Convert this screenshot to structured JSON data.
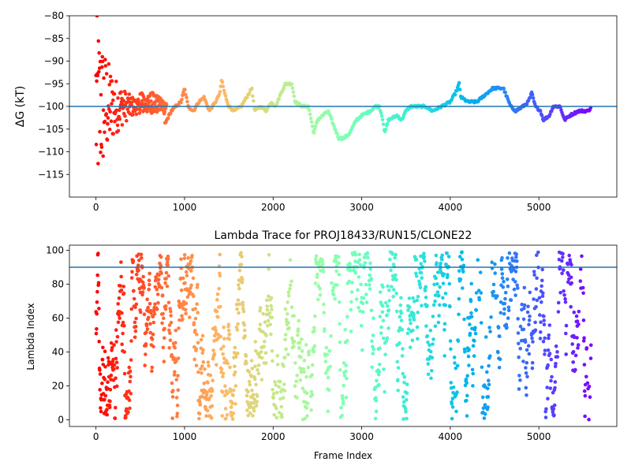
{
  "chart_data": [
    {
      "type": "scatter",
      "title": "",
      "xlabel": "",
      "ylabel": "ΔG (kT)",
      "xlim": [
        -300,
        5880
      ],
      "ylim": [
        -120,
        -80
      ],
      "x_ticks": [
        0,
        1000,
        2000,
        3000,
        4000,
        5000
      ],
      "y_ticks": [
        -115,
        -110,
        -105,
        -100,
        -95,
        -90,
        -85,
        -80
      ],
      "reference_line": {
        "y": -100,
        "color": "#1f77b4"
      },
      "colormap": "rainbow (frame index: red at 0 → violet at 5600)",
      "n_frames": 5600,
      "trace": [
        [
          0,
          -100
        ],
        [
          60,
          -99
        ],
        [
          150,
          -100
        ],
        [
          250,
          -99
        ],
        [
          350,
          -98
        ],
        [
          450,
          -98
        ],
        [
          520,
          -97
        ],
        [
          560,
          -99
        ],
        [
          620,
          -97
        ],
        [
          700,
          -98
        ],
        [
          760,
          -99
        ],
        [
          780,
          -104
        ],
        [
          800,
          -103
        ],
        [
          850,
          -101
        ],
        [
          900,
          -100
        ],
        [
          960,
          -99
        ],
        [
          1000,
          -96
        ],
        [
          1040,
          -100
        ],
        [
          1100,
          -101
        ],
        [
          1160,
          -99
        ],
        [
          1220,
          -98
        ],
        [
          1280,
          -101
        ],
        [
          1350,
          -99
        ],
        [
          1400,
          -97
        ],
        [
          1420,
          -94
        ],
        [
          1450,
          -97
        ],
        [
          1500,
          -100
        ],
        [
          1560,
          -101
        ],
        [
          1640,
          -100
        ],
        [
          1700,
          -98
        ],
        [
          1760,
          -96
        ],
        [
          1790,
          -101
        ],
        [
          1860,
          -100
        ],
        [
          1920,
          -101
        ],
        [
          1980,
          -99
        ],
        [
          2030,
          -100
        ],
        [
          2090,
          -97
        ],
        [
          2140,
          -95
        ],
        [
          2210,
          -95
        ],
        [
          2250,
          -99
        ],
        [
          2330,
          -100
        ],
        [
          2400,
          -100
        ],
        [
          2440,
          -104
        ],
        [
          2460,
          -106
        ],
        [
          2500,
          -103
        ],
        [
          2560,
          -102
        ],
        [
          2620,
          -101
        ],
        [
          2680,
          -104
        ],
        [
          2740,
          -107
        ],
        [
          2800,
          -107
        ],
        [
          2860,
          -106
        ],
        [
          2940,
          -103
        ],
        [
          3000,
          -102
        ],
        [
          3100,
          -101
        ],
        [
          3150,
          -100
        ],
        [
          3200,
          -100
        ],
        [
          3240,
          -103
        ],
        [
          3260,
          -106
        ],
        [
          3300,
          -103
        ],
        [
          3400,
          -102
        ],
        [
          3450,
          -103
        ],
        [
          3500,
          -101
        ],
        [
          3550,
          -100
        ],
        [
          3640,
          -100
        ],
        [
          3720,
          -100
        ],
        [
          3800,
          -101
        ],
        [
          3900,
          -100
        ],
        [
          4000,
          -99
        ],
        [
          4060,
          -97
        ],
        [
          4100,
          -95
        ],
        [
          4120,
          -98
        ],
        [
          4200,
          -99
        ],
        [
          4300,
          -99
        ],
        [
          4360,
          -98
        ],
        [
          4420,
          -97
        ],
        [
          4480,
          -96
        ],
        [
          4600,
          -96
        ],
        [
          4680,
          -100
        ],
        [
          4740,
          -101
        ],
        [
          4820,
          -100
        ],
        [
          4880,
          -99
        ],
        [
          4920,
          -97
        ],
        [
          4960,
          -100
        ],
        [
          5020,
          -101
        ],
        [
          5050,
          -103
        ],
        [
          5120,
          -102
        ],
        [
          5160,
          -100
        ],
        [
          5240,
          -100
        ],
        [
          5290,
          -103
        ],
        [
          5350,
          -102
        ],
        [
          5450,
          -101
        ],
        [
          5500,
          -101
        ],
        [
          5560,
          -101
        ],
        [
          5590,
          -100
        ]
      ],
      "early_scatter_ylim": [
        -119,
        -80
      ]
    },
    {
      "type": "scatter",
      "title": "Lambda Trace for PROJ18433/RUN15/CLONE22",
      "xlabel": "Frame Index",
      "ylabel": "Lambda Index",
      "xlim": [
        -300,
        5880
      ],
      "ylim": [
        -4,
        103
      ],
      "x_ticks": [
        0,
        1000,
        2000,
        3000,
        4000,
        5000
      ],
      "y_ticks": [
        0,
        20,
        40,
        60,
        80,
        100
      ],
      "reference_line": {
        "y": 91,
        "color": "#1f77b4"
      },
      "colormap": "rainbow (frame index: red at 0 → violet at 5600)",
      "n_frames": 5600,
      "lambda_range": [
        0,
        99
      ]
    }
  ]
}
